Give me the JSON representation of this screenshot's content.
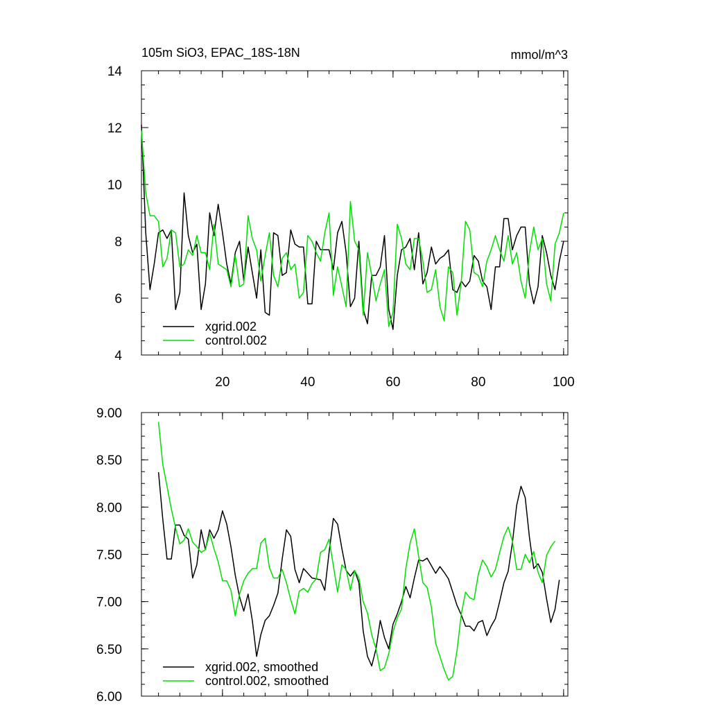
{
  "chart_data": [
    {
      "type": "line",
      "title": "105m SiO3, EPAC_18S-18N",
      "units": "mmol/m^3",
      "xlim": [
        1,
        101
      ],
      "ylim": [
        4,
        14
      ],
      "xticks": [
        20,
        40,
        60,
        80,
        100
      ],
      "yticks": [
        4,
        6,
        8,
        10,
        12,
        14
      ],
      "ytick_labels": [
        "4",
        "6",
        "8",
        "10",
        "12",
        "14"
      ],
      "xtick_labels": [
        "20",
        "40",
        "60",
        "80",
        "100"
      ],
      "legend_position": "bottom-left",
      "series": [
        {
          "name": "xgrid.002",
          "color": "#000000",
          "x_start": 1,
          "values": [
            12.1,
            8.3,
            6.3,
            7.2,
            8.3,
            8.4,
            8.1,
            8.4,
            5.6,
            6.2,
            9.7,
            8.2,
            7.6,
            7.9,
            5.6,
            6.5,
            9.0,
            8.2,
            9.3,
            8.3,
            7.2,
            6.5,
            7.6,
            8.0,
            6.6,
            7.8,
            6.9,
            6.0,
            7.7,
            5.5,
            5.4,
            8.3,
            8.2,
            6.8,
            6.9,
            8.4,
            7.9,
            7.8,
            7.8,
            5.8,
            5.8,
            8.0,
            7.7,
            7.7,
            7.7,
            7.0,
            8.3,
            8.7,
            7.6,
            5.7,
            6.0,
            8.0,
            5.6,
            5.1,
            6.8,
            6.8,
            7.1,
            8.2,
            5.6,
            4.9,
            6.8,
            7.7,
            7.8,
            8.1,
            7.0,
            8.3,
            6.5,
            6.9,
            7.8,
            7.2,
            7.4,
            7.5,
            7.7,
            6.3,
            6.2,
            6.6,
            6.4,
            6.6,
            7.5,
            7.3,
            6.6,
            6.4,
            5.6,
            7.1,
            7.1,
            8.8,
            8.8,
            7.7,
            8.2,
            8.5,
            8.5,
            6.5,
            5.8,
            6.4,
            8.2,
            7.6,
            6.8,
            6.3,
            7.3,
            8.0
          ],
          "label_id": "legend1.series1"
        },
        {
          "name": "control.002",
          "color": "#00e000",
          "x_start": 1,
          "values": [
            11.9,
            9.7,
            8.9,
            8.9,
            8.7,
            7.1,
            7.4,
            8.4,
            8.3,
            7.1,
            7.2,
            7.7,
            7.5,
            8.2,
            7.6,
            7.6,
            7.0,
            8.6,
            7.2,
            7.1,
            7.0,
            6.4,
            7.5,
            6.4,
            6.5,
            8.9,
            8.1,
            7.7,
            6.6,
            7.5,
            8.3,
            6.8,
            6.4,
            7.4,
            7.6,
            7.0,
            7.2,
            6.0,
            6.2,
            8.2,
            8.0,
            7.6,
            7.3,
            8.3,
            9.0,
            6.1,
            7.1,
            6.4,
            5.7,
            9.4,
            8.0,
            7.7,
            5.4,
            7.6,
            6.8,
            5.9,
            6.5,
            7.0,
            5.0,
            5.5,
            8.6,
            8.1,
            7.2,
            7.0,
            8.1,
            8.1,
            7.3,
            6.2,
            6.3,
            7.0,
            5.7,
            5.2,
            7.1,
            6.9,
            5.4,
            6.6,
            8.7,
            8.4,
            6.9,
            6.8,
            6.4,
            7.3,
            7.7,
            8.2,
            7.7,
            7.3,
            8.2,
            7.2,
            7.6,
            6.6,
            6.0,
            7.6,
            8.5,
            7.7,
            8.1,
            6.5,
            5.9,
            7.9,
            8.3,
            9.0
          ]
        }
      ]
    },
    {
      "type": "line",
      "xlim": [
        1,
        101
      ],
      "ylim": [
        6.0,
        9.0
      ],
      "xticks": [
        20,
        40,
        60,
        80,
        100
      ],
      "yticks": [
        6.0,
        6.5,
        7.0,
        7.5,
        8.0,
        8.5,
        9.0
      ],
      "ytick_labels": [
        "6.00",
        "6.50",
        "7.00",
        "7.50",
        "8.00",
        "8.50",
        "9.00"
      ],
      "legend_position": "bottom-left",
      "series": [
        {
          "name": "xgrid.002, smoothed",
          "color": "#000000",
          "x_start": 5,
          "values": [
            8.37,
            7.87,
            7.45,
            7.45,
            7.81,
            7.81,
            7.7,
            7.66,
            7.25,
            7.39,
            7.76,
            7.55,
            7.76,
            7.67,
            7.76,
            7.96,
            7.82,
            7.58,
            7.28,
            7.05,
            6.9,
            7.08,
            6.8,
            6.42,
            6.65,
            6.8,
            6.85,
            6.96,
            7.09,
            7.45,
            7.76,
            7.69,
            7.34,
            7.2,
            7.35,
            7.3,
            7.25,
            7.24,
            7.23,
            7.12,
            7.52,
            7.88,
            7.82,
            7.56,
            7.33,
            7.27,
            7.33,
            7.2,
            6.69,
            6.42,
            6.32,
            6.5,
            6.8,
            6.62,
            6.5,
            6.76,
            6.87,
            7.0,
            7.16,
            7.04,
            7.25,
            7.44,
            7.43,
            7.46,
            7.38,
            7.3,
            7.37,
            7.31,
            7.24,
            7.1,
            6.96,
            6.86,
            6.74,
            6.74,
            6.69,
            6.78,
            6.8,
            6.64,
            6.74,
            6.82,
            7.0,
            7.2,
            7.32,
            7.62,
            8.02,
            8.22,
            8.1,
            7.68,
            7.35,
            7.4,
            7.31,
            7.03,
            6.78,
            6.92,
            7.23
          ]
        },
        {
          "name": "control.002, smoothed",
          "color": "#00e000",
          "x_start": 5,
          "values": [
            8.9,
            8.45,
            8.22,
            7.98,
            7.78,
            7.61,
            7.65,
            7.77,
            7.63,
            7.58,
            7.52,
            7.55,
            7.72,
            7.56,
            7.42,
            7.22,
            7.22,
            7.12,
            6.85,
            7.08,
            7.22,
            7.3,
            7.35,
            7.35,
            7.62,
            7.67,
            7.36,
            7.25,
            7.25,
            7.34,
            7.2,
            7.02,
            6.87,
            7.11,
            7.14,
            7.1,
            7.19,
            7.24,
            7.52,
            7.55,
            7.66,
            7.38,
            7.1,
            7.39,
            7.34,
            7.12,
            7.33,
            7.25,
            7.0,
            6.88,
            6.65,
            6.5,
            6.27,
            6.3,
            6.45,
            6.68,
            6.83,
            6.92,
            7.35,
            7.62,
            7.77,
            7.48,
            7.2,
            7.15,
            6.94,
            6.56,
            6.42,
            6.28,
            6.17,
            6.21,
            6.48,
            6.87,
            7.1,
            7.04,
            7.02,
            7.29,
            7.44,
            7.37,
            7.26,
            7.34,
            7.52,
            7.69,
            7.79,
            7.64,
            7.34,
            7.34,
            7.5,
            7.41,
            7.53,
            7.31,
            7.2,
            7.49,
            7.58,
            7.64
          ]
        }
      ]
    }
  ]
}
